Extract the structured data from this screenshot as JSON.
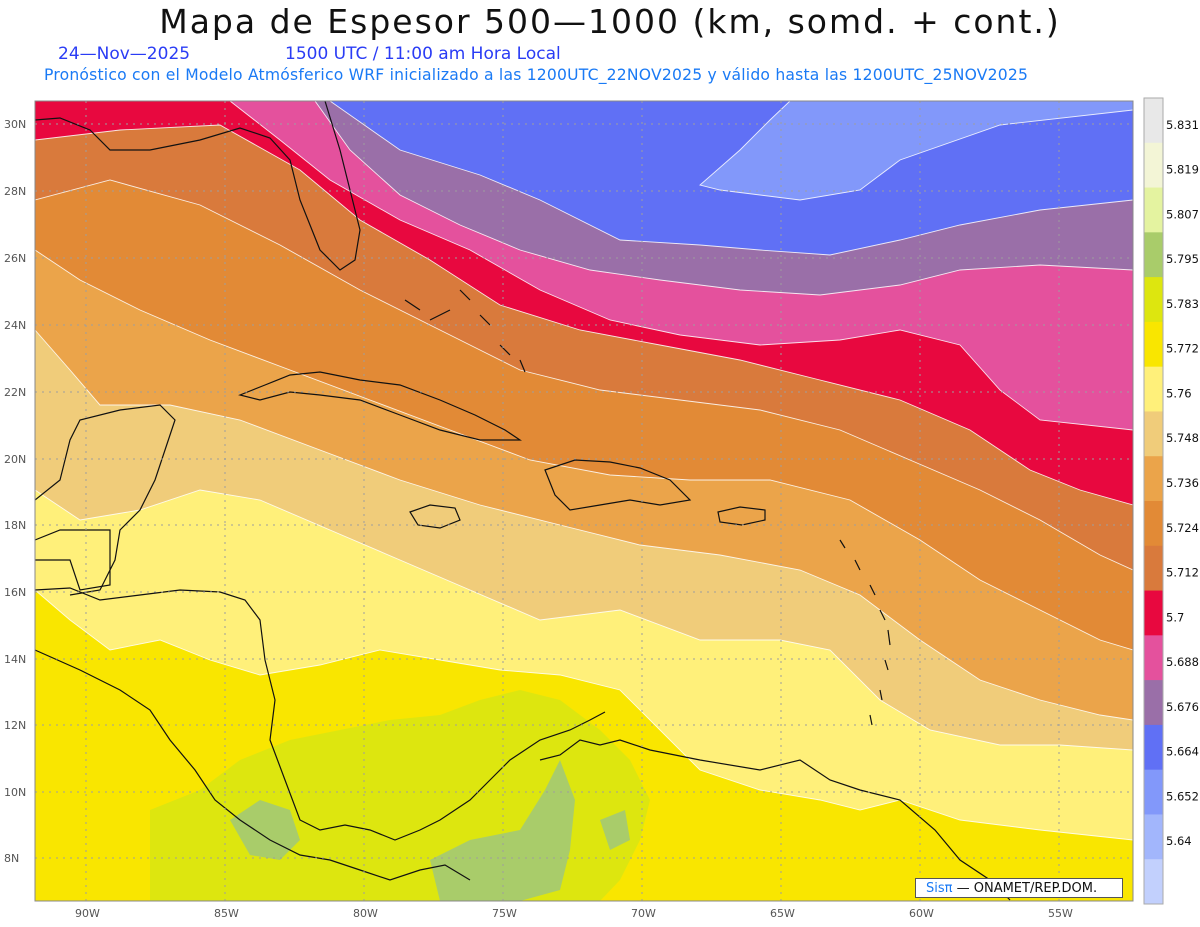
{
  "title": "Mapa de Espesor 500—1000 (km, somd. + cont.)",
  "date": "24—Nov—2025",
  "valid_time": "1500 UTC / 11:00 am Hora Local",
  "forecast_note": "Pronóstico con el Modelo Atmósferico WRF inicializado a las 1200UTC_22NOV2025 y válido hasta las  1200UTC_25NOV2025",
  "credit": {
    "brand": "Sisπ",
    "text": "— ONAMET/REP.DOM."
  },
  "latitude_labels": [
    "30N",
    "28N",
    "26N",
    "24N",
    "22N",
    "20N",
    "18N",
    "16N",
    "14N",
    "12N",
    "10N",
    "8N"
  ],
  "longitude_labels": [
    "90W",
    "85W",
    "80W",
    "75W",
    "70W",
    "65W",
    "60W",
    "55W"
  ],
  "legend": {
    "values": [
      "5.831",
      "5.819",
      "5.807",
      "5.795",
      "5.783",
      "5.772",
      "5.76",
      "5.748",
      "5.736",
      "5.724",
      "5.712",
      "5.7",
      "5.688",
      "5.676",
      "5.664",
      "5.652",
      "5.64"
    ],
    "colors": [
      "#e8e8e8",
      "#f3f5d6",
      "#e4f3a0",
      "#a9cc6a",
      "#dde60f",
      "#f9e600",
      "#fff07a",
      "#f0cc7a",
      "#eba44a",
      "#e28a36",
      "#d97a3c",
      "#e8083f",
      "#e4519d",
      "#9a6fa8",
      "#6070f5",
      "#8298fa",
      "#a2b6fc",
      "#c2d0fd"
    ]
  },
  "thickness_bands": [
    {
      "name": "band-5652",
      "color": "#8298fa"
    },
    {
      "name": "band-5664",
      "color": "#6070f5"
    },
    {
      "name": "band-5676",
      "color": "#9a6fa8"
    },
    {
      "name": "band-5688",
      "color": "#e4519d"
    },
    {
      "name": "band-5700",
      "color": "#e8083f"
    },
    {
      "name": "band-5712",
      "color": "#d97a3c"
    },
    {
      "name": "band-5724",
      "color": "#e28a36"
    },
    {
      "name": "band-5736",
      "color": "#eba44a"
    },
    {
      "name": "band-5748",
      "color": "#f0cc7a"
    },
    {
      "name": "band-5760",
      "color": "#fff07a"
    },
    {
      "name": "band-5772",
      "color": "#f9e600"
    },
    {
      "name": "band-5783",
      "color": "#dde60f"
    },
    {
      "name": "band-5795",
      "color": "#a9cc6a"
    }
  ]
}
